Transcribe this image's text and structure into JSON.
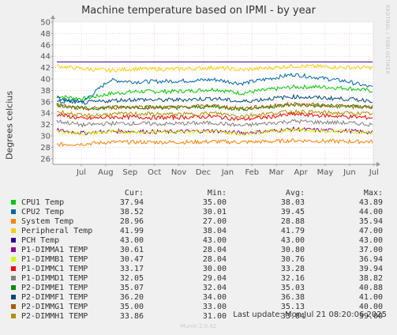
{
  "chart_data": {
    "type": "line",
    "title": "Machine temperature based on IPMI - by year",
    "ylabel": "Degrees celcius",
    "watermark": "RRDTOOL / TOBI OETIKER",
    "ylim": [
      25,
      50
    ],
    "yticks": [
      26,
      28,
      30,
      32,
      34,
      36,
      38,
      40,
      42,
      44,
      46,
      48,
      50
    ],
    "xticks": [
      "Jul",
      "Aug",
      "Sep",
      "Oct",
      "Nov",
      "Dec",
      "Jan",
      "Feb",
      "Mar",
      "Apr",
      "May",
      "Jun",
      "Jul"
    ],
    "grid": true,
    "series": [
      {
        "name": "CPU1 Temp",
        "color": "#00cc00",
        "cur": "37.94",
        "min": "35.00",
        "avg": "38.03",
        "max": "43.89",
        "profile": [
          37.0,
          36.5,
          37.4,
          37.8,
          37.8,
          37.9,
          38.2,
          37.5,
          38.1,
          38.6,
          38.6,
          38.4,
          37.9
        ]
      },
      {
        "name": "CPU2 Temp",
        "color": "#0066b3",
        "cur": "38.52",
        "min": "30.01",
        "avg": "39.45",
        "max": "44.00",
        "profile": [
          36.0,
          36.0,
          39.8,
          39.5,
          39.6,
          39.7,
          39.9,
          39.2,
          40.0,
          40.8,
          40.2,
          39.6,
          38.5
        ]
      },
      {
        "name": "System Temp",
        "color": "#ff8000",
        "cur": "28.96",
        "min": "27.00",
        "avg": "28.88",
        "max": "35.94",
        "profile": [
          28.5,
          28.6,
          28.9,
          28.9,
          28.9,
          28.9,
          29.0,
          28.9,
          29.0,
          29.2,
          29.1,
          29.0,
          29.0
        ]
      },
      {
        "name": "Peripheral Temp",
        "color": "#ffcc00",
        "cur": "41.99",
        "min": "38.04",
        "avg": "41.79",
        "max": "47.00",
        "profile": [
          42.3,
          41.8,
          41.5,
          41.8,
          41.7,
          41.8,
          42.0,
          41.6,
          41.9,
          42.3,
          42.2,
          42.0,
          42.0
        ]
      },
      {
        "name": "PCH Temp",
        "color": "#330099",
        "cur": "43.00",
        "min": "43.00",
        "avg": "43.00",
        "max": "43.00",
        "profile": [
          43,
          43,
          43,
          43,
          43,
          43,
          43,
          43,
          43,
          43,
          43,
          43,
          43
        ]
      },
      {
        "name": "P1-DIMMA1 TEMP",
        "color": "#990099",
        "cur": "30.61",
        "min": "28.04",
        "avg": "30.80",
        "max": "37.00",
        "profile": [
          31.0,
          30.5,
          30.8,
          30.8,
          30.7,
          30.8,
          30.9,
          30.5,
          30.8,
          31.2,
          31.0,
          30.9,
          30.6
        ]
      },
      {
        "name": "P1-DIMMB1 TEMP",
        "color": "#ccff00",
        "cur": "30.47",
        "min": "28.04",
        "avg": "30.76",
        "max": "36.94",
        "profile": [
          30.8,
          30.4,
          30.7,
          30.7,
          30.7,
          30.8,
          30.8,
          30.4,
          30.8,
          31.1,
          30.9,
          30.8,
          30.5
        ]
      },
      {
        "name": "P1-DIMMC1 TEMP",
        "color": "#ff0000",
        "cur": "33.17",
        "min": "30.00",
        "avg": "33.28",
        "max": "39.94",
        "profile": [
          33.8,
          33.0,
          33.3,
          33.3,
          33.2,
          33.3,
          33.4,
          32.9,
          33.3,
          33.8,
          33.6,
          33.4,
          33.2
        ]
      },
      {
        "name": "P1-DIMMD1 TEMP",
        "color": "#808080",
        "cur": "32.05",
        "min": "29.04",
        "avg": "32.16",
        "max": "38.82",
        "profile": [
          32.6,
          31.9,
          32.2,
          32.2,
          32.1,
          32.2,
          32.3,
          31.8,
          32.2,
          32.6,
          32.4,
          32.3,
          32.0
        ]
      },
      {
        "name": "P2-DIMME1 TEMP",
        "color": "#008f00",
        "cur": "35.07",
        "min": "32.04",
        "avg": "35.03",
        "max": "40.88",
        "profile": [
          35.5,
          34.8,
          35.0,
          35.1,
          35.0,
          35.0,
          35.2,
          34.7,
          35.1,
          35.5,
          35.3,
          35.2,
          35.1
        ]
      },
      {
        "name": "P2-DIMMF1 TEMP",
        "color": "#00487d",
        "cur": "36.20",
        "min": "34.00",
        "avg": "36.38",
        "max": "41.00",
        "profile": [
          36.6,
          35.8,
          36.2,
          36.4,
          36.3,
          36.4,
          36.6,
          36.0,
          36.5,
          36.9,
          36.7,
          36.5,
          36.2
        ]
      },
      {
        "name": "P2-DIMMG1 TEMP",
        "color": "#b35a00",
        "cur": "35.00",
        "min": "33.00",
        "avg": "35.13",
        "max": "40.00",
        "profile": [
          35.4,
          34.7,
          35.0,
          35.1,
          35.0,
          35.1,
          35.3,
          34.8,
          35.2,
          35.6,
          35.4,
          35.2,
          35.0
        ]
      },
      {
        "name": "P2-DIMMH1 TEMP",
        "color": "#b38f00",
        "cur": "33.86",
        "min": "31.00",
        "avg": "33.84",
        "max": "39.00",
        "profile": [
          34.3,
          33.5,
          33.8,
          33.9,
          33.8,
          33.8,
          34.0,
          33.5,
          33.9,
          34.3,
          34.1,
          34.0,
          33.9
        ]
      }
    ]
  },
  "legend": {
    "cur_header": "Cur:",
    "min_header": "Min:",
    "avg_header": "Avg:",
    "max_header": "Max:"
  },
  "footer": {
    "last_update": "Last update: Mon Jul 21 08:20:06 2025",
    "munin_version": "Munin 2.0.42"
  }
}
